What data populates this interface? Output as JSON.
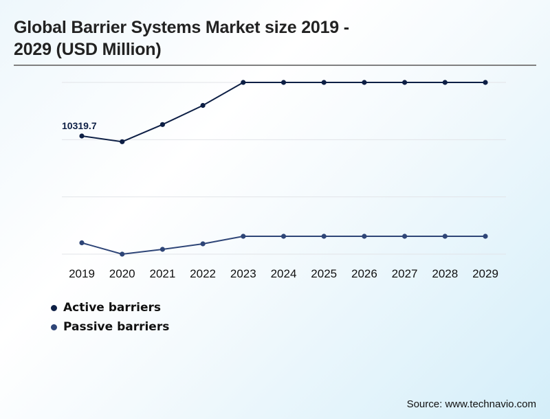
{
  "header": {
    "title_line1": "Global Barrier Systems Market size 2019 -",
    "title_line2": "2029 (USD Million)"
  },
  "source": "Source: www.technavio.com",
  "colors": {
    "active": "#0d1f45",
    "passive": "#2e4577",
    "grid": "#e2e4e8"
  },
  "chart_data": {
    "type": "line",
    "title": "Global Barrier Systems Market size 2019 - 2029 (USD Million)",
    "xlabel": "",
    "ylabel": "",
    "x": [
      "2019",
      "2020",
      "2021",
      "2022",
      "2023",
      "2024",
      "2025",
      "2026",
      "2027",
      "2028",
      "2029"
    ],
    "ylim": [
      0,
      15000
    ],
    "yticks": [
      0,
      5000,
      10000,
      15000
    ],
    "ytick_labels_visible": false,
    "grid": true,
    "legend_position": "bottom-left",
    "series": [
      {
        "name": "Active barriers",
        "values": [
          10319.7,
          9820,
          11320,
          12990,
          15000,
          15000,
          15000,
          15000,
          15000,
          15000,
          15000
        ]
      },
      {
        "name": "Passive barriers",
        "values": [
          990,
          0,
          420,
          900,
          1560,
          1560,
          1560,
          1560,
          1560,
          1560,
          1560
        ]
      }
    ],
    "annotations": [
      {
        "series": "Active barriers",
        "x": "2019",
        "text": "10319.7"
      }
    ]
  }
}
